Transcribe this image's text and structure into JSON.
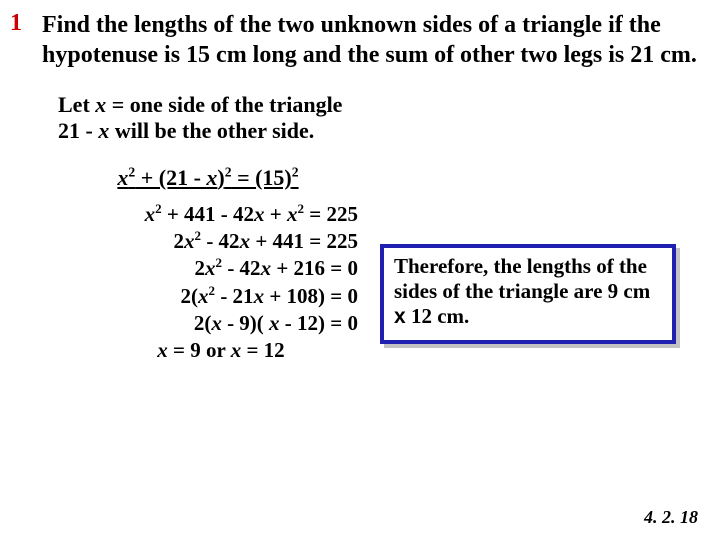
{
  "problem": {
    "number": "1",
    "text": "Find the lengths of the two unknown sides of a triangle if the hypotenuse is 15 cm long and the sum of other two legs is 21  cm."
  },
  "setup": {
    "line1_pre": "Let ",
    "line1_var": "x",
    "line1_post": " = one side of the triangle",
    "line2_pre": "21 - ",
    "line2_var": "x",
    "line2_post": "  will be the other side."
  },
  "equation_main": {
    "x": "x",
    "sup2a": "2",
    "mid": " + (21 - ",
    "x2": "x",
    "paren": ")",
    "sup2b": "2",
    "eq": " = (15)",
    "sup2c": "2"
  },
  "work": {
    "l1_a": "x",
    "l1_s1": "2",
    "l1_b": " + 441 - 42",
    "l1_c": "x",
    "l1_d": " + ",
    "l1_e": "x",
    "l1_s2": "2",
    "l1_f": " = 225",
    "l2_a": "2",
    "l2_b": "x",
    "l2_s1": "2",
    "l2_c": " - 42",
    "l2_d": "x",
    "l2_e": " + 441 = 225",
    "l3_a": "2",
    "l3_b": "x",
    "l3_s1": "2",
    "l3_c": " - 42",
    "l3_d": "x",
    "l3_e": " + 216 = 0",
    "l4_a": "2(",
    "l4_b": "x",
    "l4_s1": "2",
    "l4_c": " - 21",
    "l4_d": "x",
    "l4_e": " + 108) = 0",
    "l5_a": "2(",
    "l5_b": "x",
    "l5_c": " - 9)( ",
    "l5_d": "x",
    "l5_e": " - 12) = 0",
    "l6_a": "x",
    "l6_b": " = 9    or    ",
    "l6_c": "x",
    "l6_d": " = 12"
  },
  "answer": {
    "pre": "Therefore, the lengths of the sides of the triangle are  9 cm ",
    "by": "x",
    "post": " 12 cm."
  },
  "footer": "4. 2. 18",
  "style": {
    "number_color": "#cc0000",
    "box_border": "#2020b0",
    "font_main": "Times New Roman",
    "fontsize_body": 22
  }
}
